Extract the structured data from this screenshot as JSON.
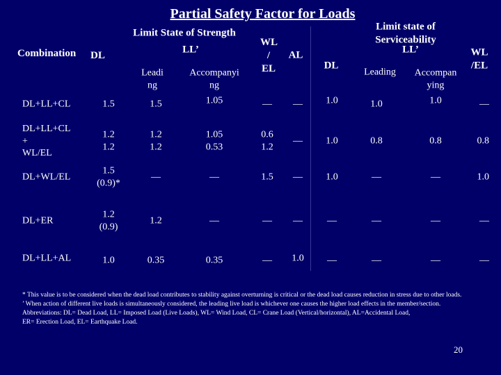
{
  "title": "Partial Safety Factor for Loads",
  "header": {
    "combination": "Combination",
    "dl": "DL",
    "strength": {
      "title": "Limit State of Strength",
      "ll": "LL’",
      "leading": "Leading",
      "accompanying": "Accompanying"
    },
    "wl_el": "WL / EL",
    "al": "AL",
    "serviceability": {
      "title": "Limit state of Serviceability",
      "ll": "LL’",
      "dl": "DL",
      "leading": "Leading",
      "accompanying": "Accompanying",
      "wl_el": "WL /EL"
    }
  },
  "rows": [
    [
      "DL+LL+CL",
      "1.5",
      "1.5",
      "1.05",
      "—",
      "—",
      "1.0",
      "1.0",
      "1.0",
      "—"
    ],
    [
      "DL+LL+CL\n+\nWL/EL",
      "1.2\n1.2",
      "1.2\n1.2",
      "1.05\n0.53",
      "0.6\n1.2",
      "—",
      "1.0",
      "0.8",
      "0.8",
      "0.8"
    ],
    [
      "DL+WL/EL",
      "1.5\n(0.9)*",
      "—",
      "—",
      "1.5",
      "—",
      "1.0",
      "—",
      "—",
      "1.0"
    ],
    [
      "DL+ER",
      "1.2\n(0.9)",
      "1.2",
      "—",
      "—",
      "—",
      "—",
      "—",
      "—",
      "—"
    ],
    [
      "DL+LL+AL",
      "1.0",
      "0.35",
      "0.35",
      "—",
      "1.0",
      "—",
      "—",
      "—",
      "—"
    ]
  ],
  "footnotes": [
    "* This value is to be considered when the dead load contributes to stability against overturning is critical or the dead load causes reduction in stress due to other loads.",
    "’ When action of different live loads is simultaneously considered, the leading live load is whichever one causes the higher load effects in the member/section.",
    "Abbreviations: DL= Dead Load, LL= Imposed Load (Live Loads), WL= Wind Load, CL= Crane Load (Vertical/horizontal), AL=Accidental Load,",
    "ER= Erection Load, EL= Earthquake Load."
  ],
  "page_number": "20"
}
